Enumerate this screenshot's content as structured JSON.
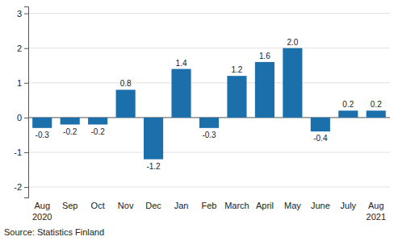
{
  "chart_data": {
    "type": "bar",
    "categories": [
      "Aug 2020",
      "Sep",
      "Oct",
      "Nov",
      "Dec",
      "Jan",
      "Feb",
      "March",
      "April",
      "May",
      "June",
      "July",
      "Aug 2021"
    ],
    "values": [
      -0.3,
      -0.2,
      -0.2,
      0.8,
      -1.2,
      1.4,
      -0.3,
      1.2,
      1.6,
      2.0,
      -0.4,
      0.2,
      0.2
    ],
    "value_labels": [
      "-0.3",
      "-0.2",
      "-0.2",
      "0.8",
      "-1.2",
      "1.4",
      "-0.3",
      "1.2",
      "1.6",
      "2.0",
      "-0.4",
      "0.2",
      "0.2"
    ],
    "color": "#1b6fab",
    "ylim": [
      -2.3,
      3.2
    ],
    "yticks": [
      -2,
      -1,
      0,
      1,
      2,
      3
    ],
    "grid": true,
    "data_labels": true,
    "source": "Source: Statistics Finland"
  }
}
